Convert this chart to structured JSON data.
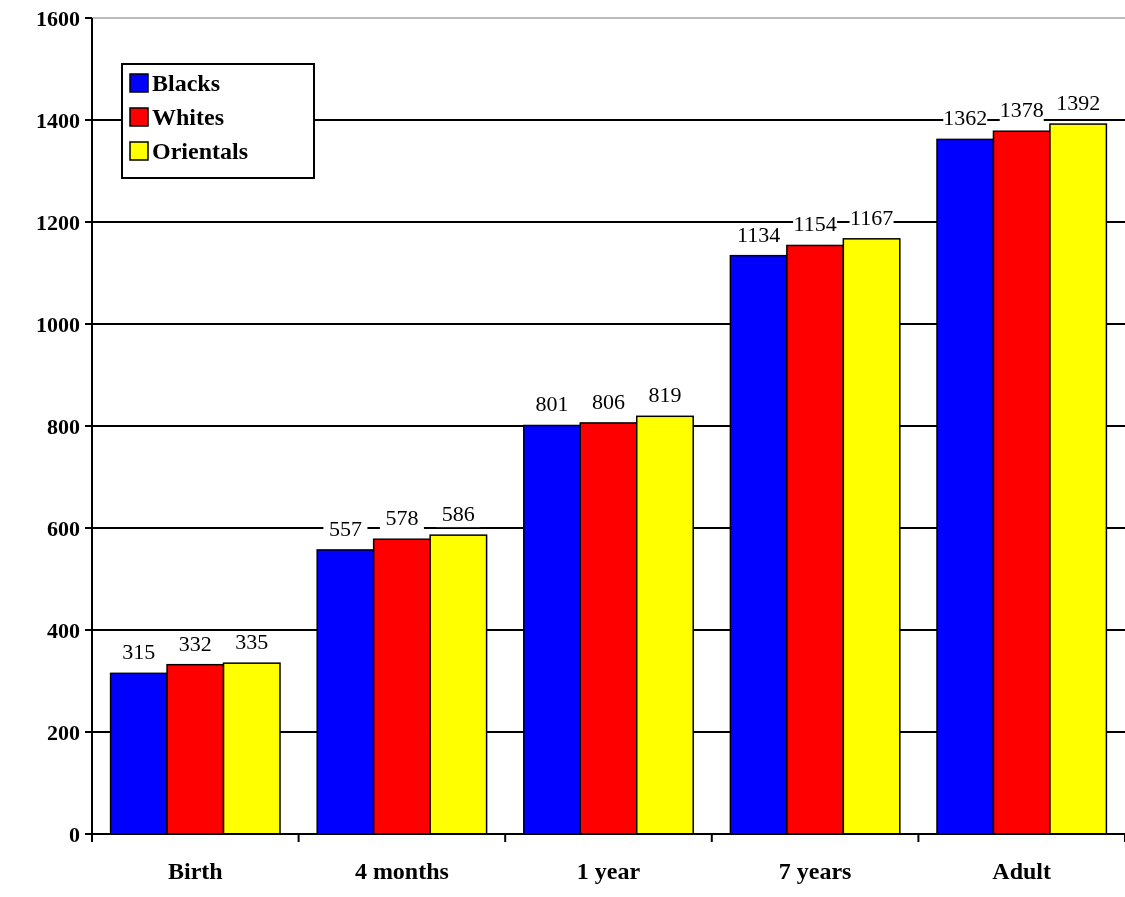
{
  "chart_data": {
    "type": "bar",
    "categories": [
      "Birth",
      "4 months",
      "1 year",
      "7 years",
      "Adult"
    ],
    "series": [
      {
        "name": "Blacks",
        "color": "#0000ff",
        "values": [
          315,
          557,
          801,
          1134,
          1362
        ]
      },
      {
        "name": "Whites",
        "color": "#ff0000",
        "values": [
          332,
          578,
          806,
          1154,
          1378
        ]
      },
      {
        "name": "Orientals",
        "color": "#ffff00",
        "values": [
          335,
          586,
          819,
          1167,
          1392
        ]
      }
    ],
    "ylim": [
      0,
      1600
    ],
    "yticks": [
      0,
      200,
      400,
      600,
      800,
      1000,
      1200,
      1400,
      1600
    ],
    "grid": "y",
    "legend": "top left",
    "data_labels": true
  }
}
